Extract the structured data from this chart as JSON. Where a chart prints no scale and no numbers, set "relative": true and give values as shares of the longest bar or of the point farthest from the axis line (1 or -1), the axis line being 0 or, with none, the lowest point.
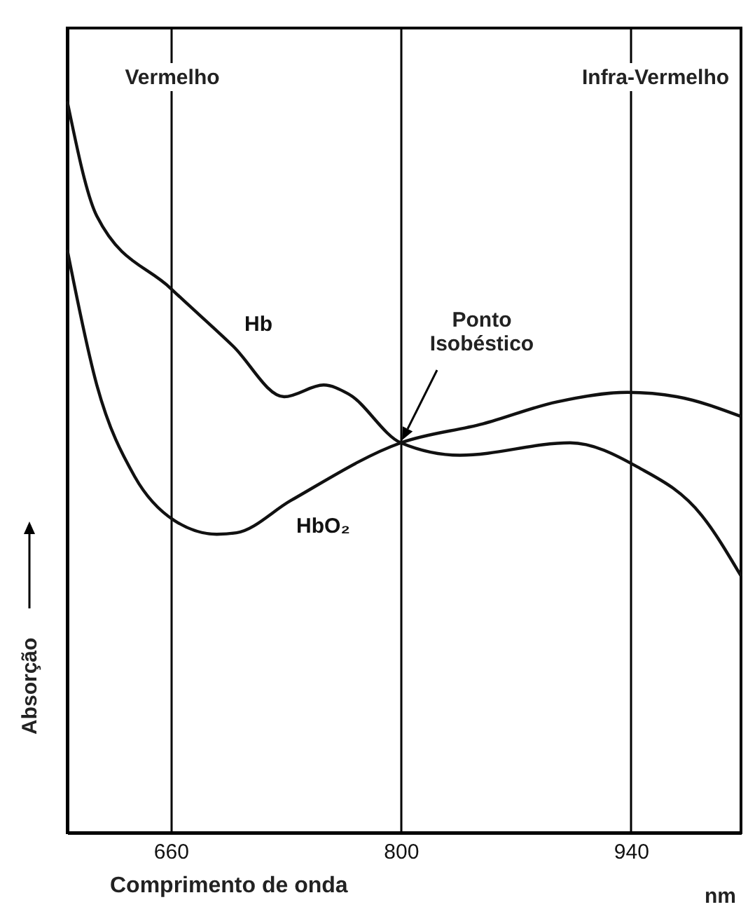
{
  "chart_data": {
    "type": "line",
    "relative": true,
    "xlabel": "Comprimento de onda",
    "ylabel": "Absorção",
    "xlim": [
      597,
      1007
    ],
    "xticks": [
      660,
      800,
      940
    ],
    "grid": "x",
    "marker": "none",
    "line_style": "solid",
    "annotations": [
      "Vermelho",
      "Infra-Vermelho",
      "Ponto Isobéstico",
      "nm"
    ],
    "series": [
      {
        "name": "Hb",
        "color": "#111111",
        "x": [
          597,
          615,
          660,
          698,
          729,
          753,
          768,
          800,
          836,
          903,
          944,
          983,
          1007
        ],
        "values": [
          1.0,
          0.843,
          0.744,
          0.665,
          0.596,
          0.612,
          0.6,
          0.533,
          0.516,
          0.533,
          0.5,
          0.434,
          0.351
        ]
      },
      {
        "name": "HbO₂",
        "color": "#111111",
        "x": [
          597,
          615,
          638,
          662,
          688,
          700,
          733,
          800,
          850,
          895,
          938,
          968,
          1007
        ],
        "values": [
          0.797,
          0.612,
          0.487,
          0.427,
          0.408,
          0.41,
          0.454,
          0.533,
          0.559,
          0.589,
          0.602,
          0.596,
          0.569
        ]
      }
    ]
  }
}
